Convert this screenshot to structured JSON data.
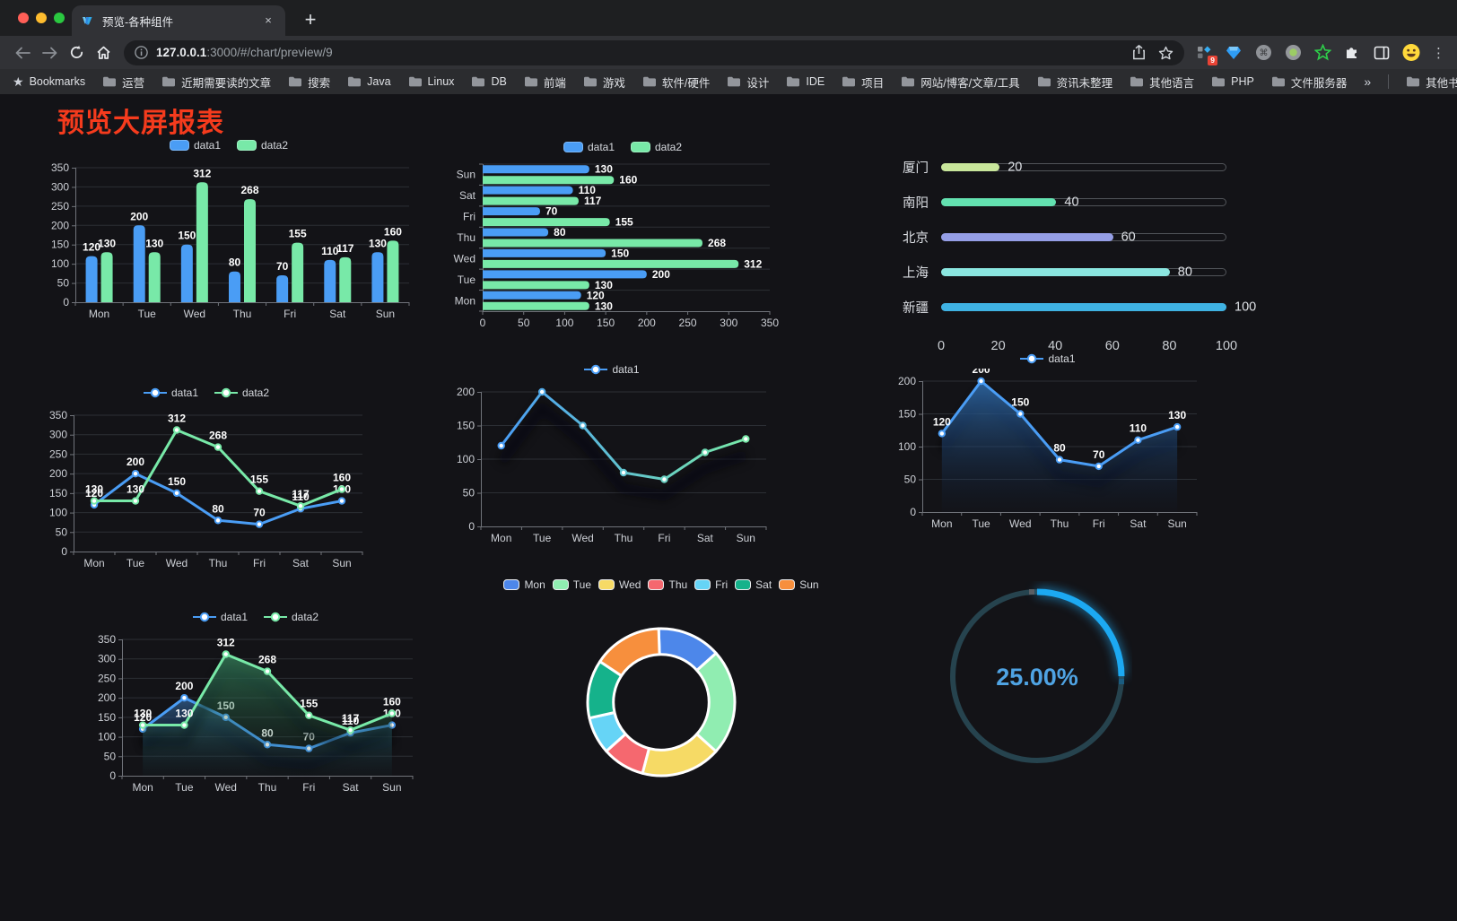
{
  "browser": {
    "tab_title": "预览-各种组件",
    "close_tab": "×",
    "new_tab_button": "+",
    "url": {
      "host": "127.0.0.1",
      "rest": ":3000/#/chart/preview/9"
    },
    "extension_badge": "9",
    "bookmarks_bar": {
      "label": "Bookmarks",
      "folders": [
        "运营",
        "近期需要读的文章",
        "搜索",
        "Java",
        "Linux",
        "DB",
        "前端",
        "游戏",
        "软件/硬件",
        "设计",
        "IDE",
        "项目",
        "网站/博客/文章/工具",
        "资讯未整理",
        "其他语言",
        "PHP",
        "文件服务器"
      ],
      "overflow": "»",
      "other": "其他书签"
    }
  },
  "page": {
    "title": "预览大屏报表",
    "title_color": "#f53b1d",
    "background": "#131317"
  },
  "chart_data": [
    {
      "id": "bar-vertical",
      "type": "bar",
      "categories": [
        "Mon",
        "Tue",
        "Wed",
        "Thu",
        "Fri",
        "Sat",
        "Sun"
      ],
      "series": [
        {
          "name": "data1",
          "color": "#4a9df5",
          "values": [
            120,
            200,
            150,
            80,
            70,
            110,
            130
          ]
        },
        {
          "name": "data2",
          "color": "#78e9a8",
          "values": [
            130,
            130,
            312,
            268,
            155,
            117,
            160
          ]
        }
      ],
      "ylim": [
        0,
        350
      ],
      "yticks": [
        0,
        50,
        100,
        150,
        200,
        250,
        300,
        350
      ],
      "value_labels": true,
      "legend_position": "top",
      "grid": true
    },
    {
      "id": "bar-horizontal",
      "type": "hbar",
      "categories": [
        "Mon",
        "Tue",
        "Wed",
        "Thu",
        "Fri",
        "Sat",
        "Sun"
      ],
      "display_order_top_to_bottom": [
        "Sun",
        "Sat",
        "Fri",
        "Thu",
        "Wed",
        "Tue",
        "Mon"
      ],
      "series": [
        {
          "name": "data1",
          "color": "#4a9df5",
          "values": [
            120,
            200,
            150,
            80,
            70,
            110,
            130
          ]
        },
        {
          "name": "data2",
          "color": "#78e9a8",
          "values": [
            130,
            130,
            312,
            268,
            155,
            117,
            160
          ]
        }
      ],
      "xlim": [
        0,
        350
      ],
      "xticks": [
        0,
        50,
        100,
        150,
        200,
        250,
        300,
        350
      ],
      "value_labels": true,
      "legend_position": "top",
      "grid": true
    },
    {
      "id": "progress-bars",
      "type": "bar",
      "variant": "progress",
      "items": [
        {
          "label": "厦门",
          "value": 20,
          "color": "#c8e69b"
        },
        {
          "label": "南阳",
          "value": 40,
          "color": "#63e1b0"
        },
        {
          "label": "北京",
          "value": 60,
          "color": "#959ee6"
        },
        {
          "label": "上海",
          "value": 80,
          "color": "#8be6e0"
        },
        {
          "label": "新疆",
          "value": 100,
          "color": "#3fb2e3"
        }
      ],
      "xlim": [
        0,
        100
      ],
      "xticks": [
        0,
        20,
        40,
        60,
        80,
        100
      ]
    },
    {
      "id": "line-two-series",
      "type": "line",
      "categories": [
        "Mon",
        "Tue",
        "Wed",
        "Thu",
        "Fri",
        "Sat",
        "Sun"
      ],
      "series": [
        {
          "name": "data1",
          "color": "#4a9df5",
          "values": [
            120,
            200,
            150,
            80,
            70,
            110,
            130
          ]
        },
        {
          "name": "data2",
          "color": "#78e9a8",
          "values": [
            130,
            130,
            312,
            268,
            155,
            117,
            160
          ]
        }
      ],
      "ylim": [
        0,
        350
      ],
      "yticks": [
        0,
        50,
        100,
        150,
        200,
        250,
        300,
        350
      ],
      "value_labels": true,
      "markers": true,
      "legend_position": "top",
      "grid": true
    },
    {
      "id": "line-gradient",
      "type": "line",
      "categories": [
        "Mon",
        "Tue",
        "Wed",
        "Thu",
        "Fri",
        "Sat",
        "Sun"
      ],
      "series": [
        {
          "name": "data1",
          "gradient": [
            "#4a9df5",
            "#78e9a8"
          ],
          "values": [
            120,
            200,
            150,
            80,
            70,
            110,
            130
          ]
        }
      ],
      "ylim": [
        0,
        200
      ],
      "yticks": [
        0,
        50,
        100,
        150,
        200
      ],
      "value_labels": false,
      "markers": true,
      "shadow": true,
      "legend_position": "top",
      "grid": true
    },
    {
      "id": "area-single",
      "type": "area",
      "categories": [
        "Mon",
        "Tue",
        "Wed",
        "Thu",
        "Fri",
        "Sat",
        "Sun"
      ],
      "series": [
        {
          "name": "data1",
          "color": "#4a9df5",
          "area": [
            "rgba(48,110,175,0.85)",
            "rgba(15,35,65,0.06)"
          ],
          "values": [
            120,
            200,
            150,
            80,
            70,
            110,
            130
          ]
        }
      ],
      "ylim": [
        0,
        200
      ],
      "yticks": [
        0,
        50,
        100,
        150,
        200
      ],
      "value_labels": true,
      "markers": true,
      "shadow": true,
      "legend_position": "top",
      "grid": true
    },
    {
      "id": "area-two",
      "type": "area",
      "categories": [
        "Mon",
        "Tue",
        "Wed",
        "Thu",
        "Fri",
        "Sat",
        "Sun"
      ],
      "series": [
        {
          "name": "data1",
          "color": "#4a9df5",
          "area": [
            "rgba(58,118,180,0.60)",
            "rgba(20,40,70,0.05)"
          ],
          "values": [
            120,
            200,
            150,
            80,
            70,
            110,
            130
          ]
        },
        {
          "name": "data2",
          "color": "#78e9a8",
          "area": [
            "rgba(60,150,105,0.65)",
            "rgba(20,60,40,0.05)"
          ],
          "values": [
            130,
            130,
            312,
            268,
            155,
            117,
            160
          ]
        }
      ],
      "ylim": [
        0,
        350
      ],
      "yticks": [
        0,
        50,
        100,
        150,
        200,
        250,
        300,
        350
      ],
      "value_labels": true,
      "markers": true,
      "shadow": true,
      "legend_position": "top",
      "grid": true
    },
    {
      "id": "donut",
      "type": "pie",
      "inner_radius_ratio": 0.65,
      "categories": [
        "Mon",
        "Tue",
        "Wed",
        "Thu",
        "Fri",
        "Sat",
        "Sun"
      ],
      "values": [
        120,
        200,
        150,
        80,
        70,
        110,
        130
      ],
      "colors": [
        "#4d87ea",
        "#90edb1",
        "#f6da65",
        "#f5686f",
        "#66d4f6",
        "#15b28b",
        "#f78f3d"
      ],
      "legend_position": "top"
    },
    {
      "id": "gauge",
      "type": "gauge",
      "value": 25,
      "max": 100,
      "display": "25.00%",
      "progress_color": "#1ca9f2",
      "track_color": "#26434e",
      "text_color": "#4fa3e3"
    }
  ]
}
